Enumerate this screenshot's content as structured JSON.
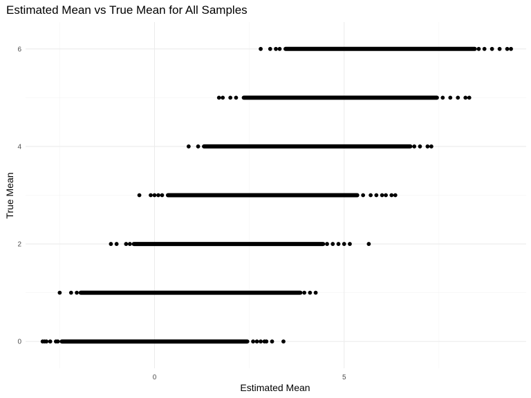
{
  "chart_data": {
    "type": "scatter",
    "title": "Estimated Mean vs True Mean for All Samples",
    "xlabel": "Estimated Mean",
    "ylabel": "True Mean",
    "xlim": [
      -3.4,
      9.8
    ],
    "ylim": [
      -0.55,
      6.55
    ],
    "x_ticks": [
      0,
      5
    ],
    "x_tick_labels": [
      "0",
      "5"
    ],
    "y_ticks": [
      0,
      2,
      4,
      6
    ],
    "y_tick_labels": [
      "0",
      "2",
      "4",
      "6"
    ],
    "grid": true,
    "point_color": "#000000",
    "groups": [
      {
        "true_mean": 0,
        "dense_range": [
          -2.5,
          2.5
        ],
        "outliers": [
          -2.95,
          -2.9,
          -2.85,
          -2.75,
          -2.6,
          -2.55,
          2.6,
          2.7,
          2.8,
          2.9,
          2.95,
          3.1,
          3.4
        ]
      },
      {
        "true_mean": 1,
        "dense_range": [
          -2.0,
          3.9
        ],
        "outliers": [
          -2.5,
          -2.2,
          -2.05,
          3.95,
          4.1,
          4.25
        ]
      },
      {
        "true_mean": 2,
        "dense_range": [
          -0.6,
          4.5
        ],
        "outliers": [
          -1.15,
          -1.0,
          -0.75,
          -0.65,
          4.55,
          4.7,
          4.85,
          5.0,
          5.15,
          5.65
        ]
      },
      {
        "true_mean": 3,
        "dense_range": [
          0.3,
          5.4
        ],
        "outliers": [
          -0.4,
          -0.1,
          0.0,
          0.1,
          0.2,
          5.5,
          5.7,
          5.85,
          6.0,
          6.1,
          6.25,
          6.35
        ]
      },
      {
        "true_mean": 4,
        "dense_range": [
          1.25,
          6.8
        ],
        "outliers": [
          0.9,
          1.15,
          6.85,
          7.0,
          7.2,
          7.3
        ]
      },
      {
        "true_mean": 5,
        "dense_range": [
          2.3,
          7.5
        ],
        "outliers": [
          1.7,
          1.8,
          2.0,
          2.15,
          7.6,
          7.8,
          8.0,
          8.2,
          8.3
        ]
      },
      {
        "true_mean": 6,
        "dense_range": [
          3.4,
          8.5
        ],
        "outliers": [
          2.8,
          3.05,
          3.2,
          3.3,
          8.55,
          8.7,
          8.9,
          9.1,
          9.3,
          9.4
        ]
      }
    ]
  }
}
